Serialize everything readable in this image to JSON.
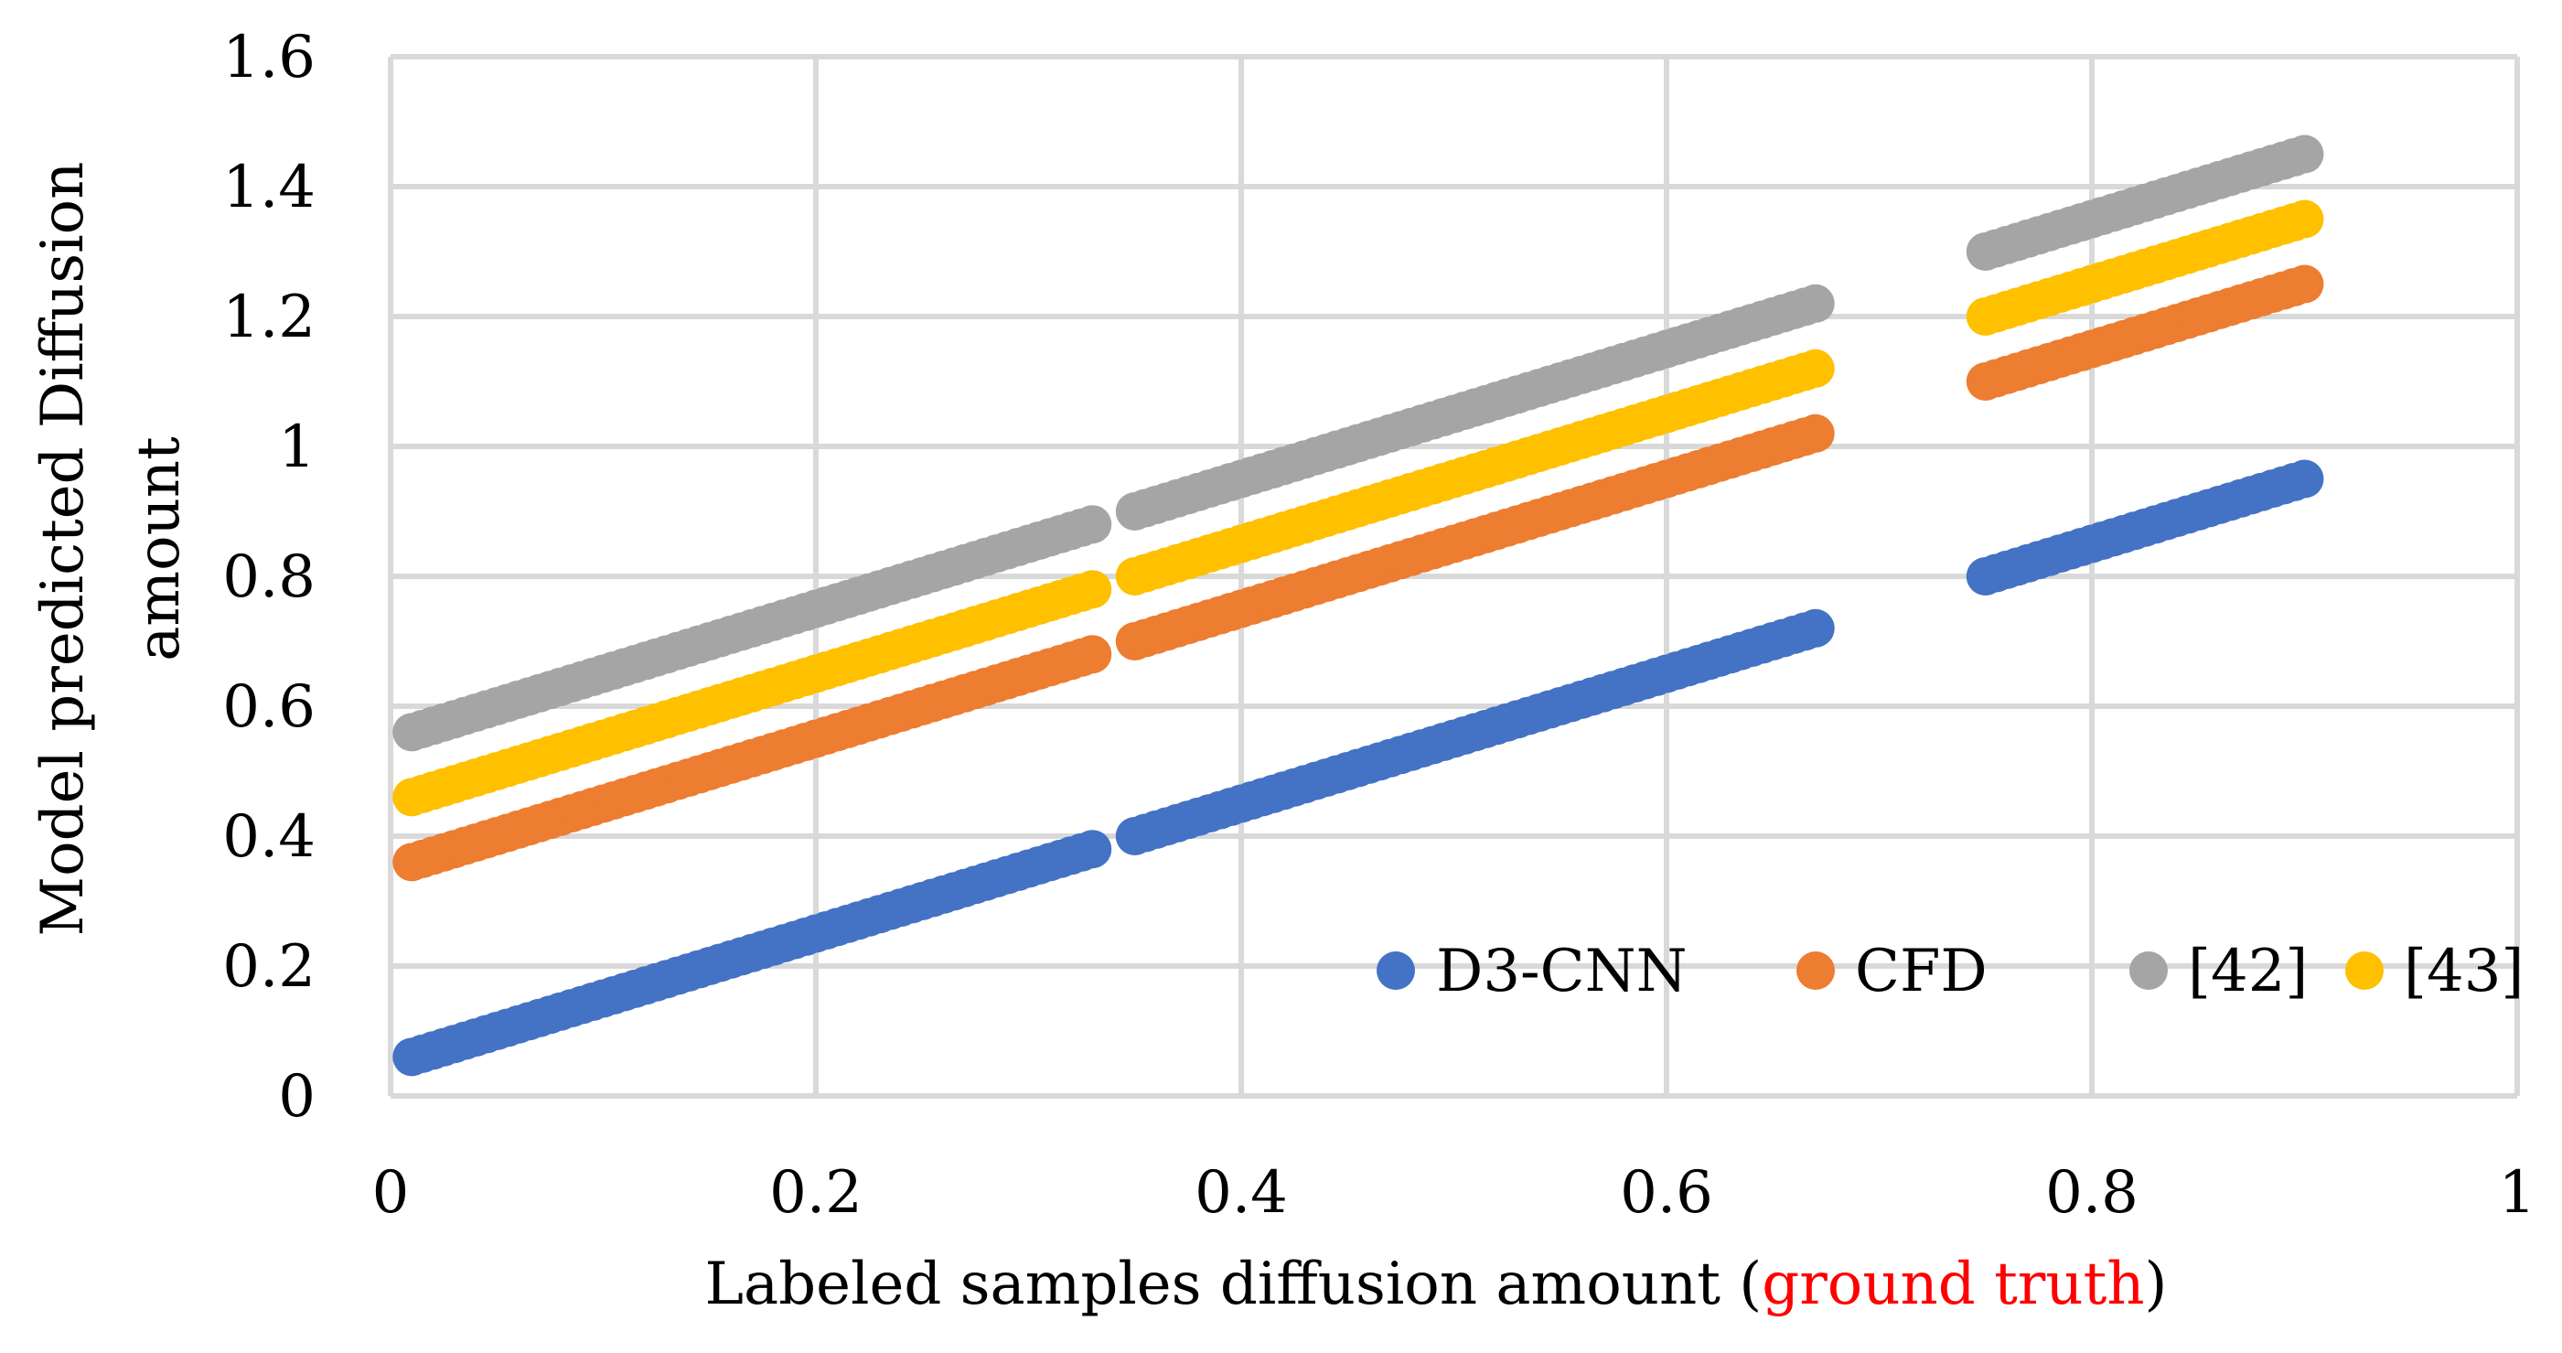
{
  "chart_data": {
    "type": "scatter",
    "title": "",
    "xlabel_main": "Labeled samples diffusion amount ",
    "xlabel_open": "(",
    "xlabel_highlight": "ground truth",
    "xlabel_close": ")",
    "ylabel_line1": "Model predicted Diffusion",
    "ylabel_line2": "amount",
    "xlim": [
      0,
      1
    ],
    "ylim": [
      0,
      1.6
    ],
    "x_ticks": [
      0,
      0.2,
      0.4,
      0.6,
      0.8,
      1
    ],
    "y_ticks": [
      0,
      0.2,
      0.4,
      0.6,
      0.8,
      1,
      1.2,
      1.4,
      1.6
    ],
    "x_tick_labels": [
      "0",
      "0.2",
      "0.4",
      "0.6",
      "0.8",
      "1"
    ],
    "y_tick_labels": [
      "0",
      "0.2",
      "0.4",
      "0.6",
      "0.8",
      "1",
      "1.2",
      "1.4",
      "1.6"
    ],
    "grid": true,
    "legend_position": "bottom-right inside",
    "x_segments": [
      {
        "start": 0.01,
        "end": 0.33,
        "step": 0.005
      },
      {
        "start": 0.35,
        "end": 0.67,
        "step": 0.005
      },
      {
        "start": 0.75,
        "end": 0.9,
        "step": 0.005
      }
    ],
    "series": [
      {
        "name": "D3-CNN",
        "color": "#4472c4",
        "y_offset": 0.05
      },
      {
        "name": "CFD",
        "color": "#ed7d31",
        "y_offset": 0.35
      },
      {
        "name": "[42]",
        "color": "#a5a5a5",
        "y_offset": 0.55
      },
      {
        "name": "[43]",
        "color": "#ffc000",
        "y_offset": 0.45
      }
    ],
    "relation": "y = x + y_offset"
  }
}
